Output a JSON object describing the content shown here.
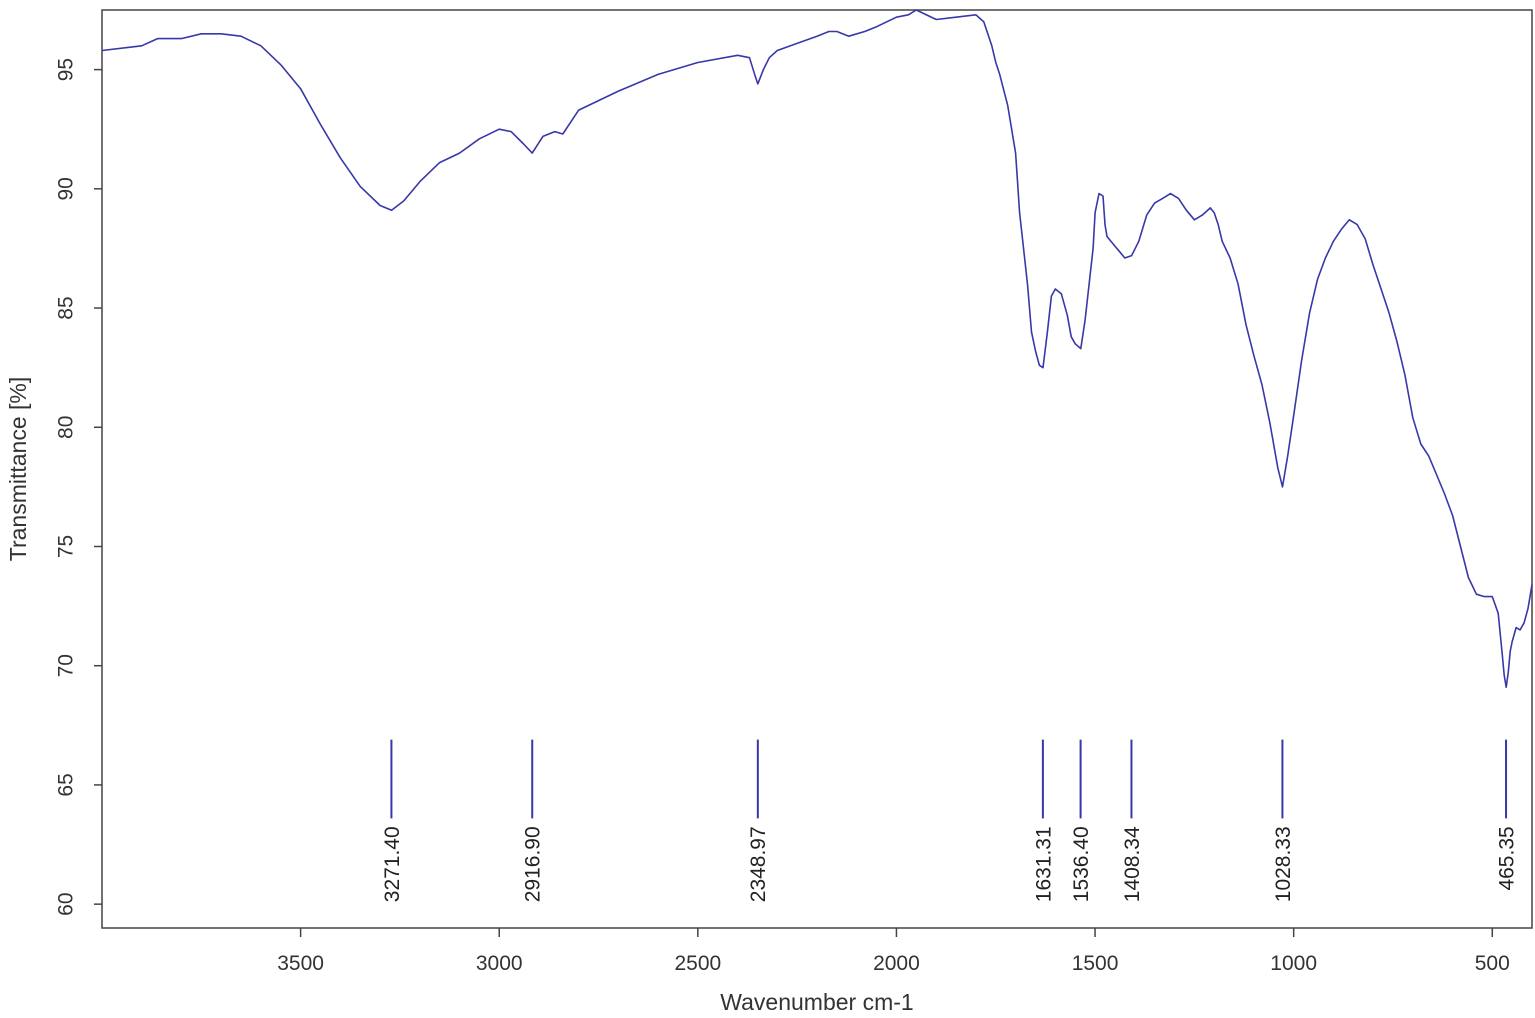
{
  "chart_data": {
    "type": "line",
    "title": "",
    "xlabel": "Wavenumber cm-1",
    "ylabel": "Transmittance [%]",
    "xlim": [
      4000,
      400
    ],
    "ylim": [
      59,
      97.5
    ],
    "x_reversed": true,
    "x_ticks": [
      {
        "value": 3500,
        "label": "3500"
      },
      {
        "value": 3000,
        "label": "3000"
      },
      {
        "value": 2500,
        "label": "2500"
      },
      {
        "value": 2000,
        "label": "2000"
      },
      {
        "value": 1500,
        "label": "1500"
      },
      {
        "value": 1000,
        "label": "1000"
      },
      {
        "value": 500,
        "label": "500"
      }
    ],
    "y_ticks": [
      {
        "value": 60,
        "label": "60"
      },
      {
        "value": 65,
        "label": "65"
      },
      {
        "value": 70,
        "label": "70"
      },
      {
        "value": 75,
        "label": "75"
      },
      {
        "value": 80,
        "label": "80"
      },
      {
        "value": 85,
        "label": "85"
      },
      {
        "value": 90,
        "label": "90"
      },
      {
        "value": 95,
        "label": "95"
      }
    ],
    "grid": false,
    "line_color": "#3838a8",
    "marker_range": [
      63.6,
      66.9
    ],
    "peaks": [
      {
        "x": 3271.4,
        "label": "3271.40"
      },
      {
        "x": 2916.9,
        "label": "2916.90"
      },
      {
        "x": 2348.97,
        "label": "2348.97"
      },
      {
        "x": 1631.31,
        "label": "1631.31"
      },
      {
        "x": 1536.4,
        "label": "1536.40"
      },
      {
        "x": 1408.34,
        "label": "1408.34"
      },
      {
        "x": 1028.33,
        "label": "1028.33"
      },
      {
        "x": 465.35,
        "label": "465.35"
      }
    ],
    "series": [
      {
        "x": [
          4000,
          3900,
          3860,
          3800,
          3750,
          3700,
          3650,
          3600,
          3550,
          3500,
          3450,
          3400,
          3350,
          3300,
          3271,
          3240,
          3200,
          3150,
          3100,
          3050,
          3000,
          2970,
          2940,
          2917,
          2890,
          2860,
          2840,
          2800,
          2700,
          2600,
          2500,
          2400,
          2370,
          2355,
          2349,
          2335,
          2320,
          2300,
          2250,
          2200,
          2170,
          2150,
          2120,
          2080,
          2050,
          2000,
          1970,
          1950,
          1900,
          1850,
          1800,
          1780,
          1760,
          1750,
          1740,
          1720,
          1700,
          1690,
          1670,
          1660,
          1650,
          1640,
          1631,
          1620,
          1610,
          1600,
          1585,
          1570,
          1560,
          1550,
          1536,
          1525,
          1515,
          1505,
          1500,
          1490,
          1480,
          1475,
          1470,
          1460,
          1450,
          1440,
          1425,
          1408,
          1390,
          1370,
          1350,
          1330,
          1310,
          1290,
          1270,
          1250,
          1230,
          1210,
          1200,
          1190,
          1180,
          1160,
          1140,
          1120,
          1100,
          1080,
          1060,
          1040,
          1028,
          1015,
          1000,
          980,
          960,
          940,
          920,
          900,
          880,
          860,
          840,
          820,
          800,
          780,
          760,
          740,
          720,
          700,
          680,
          660,
          640,
          620,
          600,
          580,
          560,
          540,
          520,
          500,
          485,
          475,
          470,
          465,
          460,
          455,
          450,
          440,
          430,
          420,
          410,
          400
        ],
        "y": [
          95.8,
          96.0,
          96.3,
          96.3,
          96.5,
          96.5,
          96.4,
          96.0,
          95.2,
          94.2,
          92.7,
          91.3,
          90.1,
          89.3,
          89.1,
          89.5,
          90.3,
          91.1,
          91.5,
          92.1,
          92.5,
          92.4,
          91.9,
          91.5,
          92.2,
          92.4,
          92.3,
          93.3,
          94.1,
          94.8,
          95.3,
          95.6,
          95.5,
          94.7,
          94.4,
          95.0,
          95.5,
          95.8,
          96.1,
          96.4,
          96.6,
          96.6,
          96.4,
          96.6,
          96.8,
          97.2,
          97.3,
          97.5,
          97.1,
          97.2,
          97.3,
          97.0,
          96.0,
          95.3,
          94.8,
          93.5,
          91.5,
          89.0,
          86.0,
          84.0,
          83.2,
          82.6,
          82.5,
          84.0,
          85.5,
          85.8,
          85.6,
          84.7,
          83.8,
          83.5,
          83.3,
          84.5,
          86.0,
          87.5,
          89.0,
          89.8,
          89.7,
          88.5,
          88.0,
          87.8,
          87.6,
          87.4,
          87.1,
          87.2,
          87.8,
          88.9,
          89.4,
          89.6,
          89.8,
          89.6,
          89.1,
          88.7,
          88.9,
          89.2,
          89.0,
          88.5,
          87.8,
          87.1,
          86.0,
          84.3,
          83.0,
          81.8,
          80.2,
          78.3,
          77.5,
          78.8,
          80.5,
          82.8,
          84.8,
          86.2,
          87.1,
          87.8,
          88.3,
          88.7,
          88.5,
          87.9,
          86.8,
          85.8,
          84.8,
          83.6,
          82.2,
          80.4,
          79.3,
          78.8,
          78.0,
          77.2,
          76.3,
          75.0,
          73.7,
          73.0,
          72.9,
          72.9,
          72.2,
          70.5,
          69.6,
          69.1,
          69.7,
          70.6,
          71.0,
          71.6,
          71.5,
          71.8,
          72.4,
          73.4
        ]
      }
    ]
  }
}
